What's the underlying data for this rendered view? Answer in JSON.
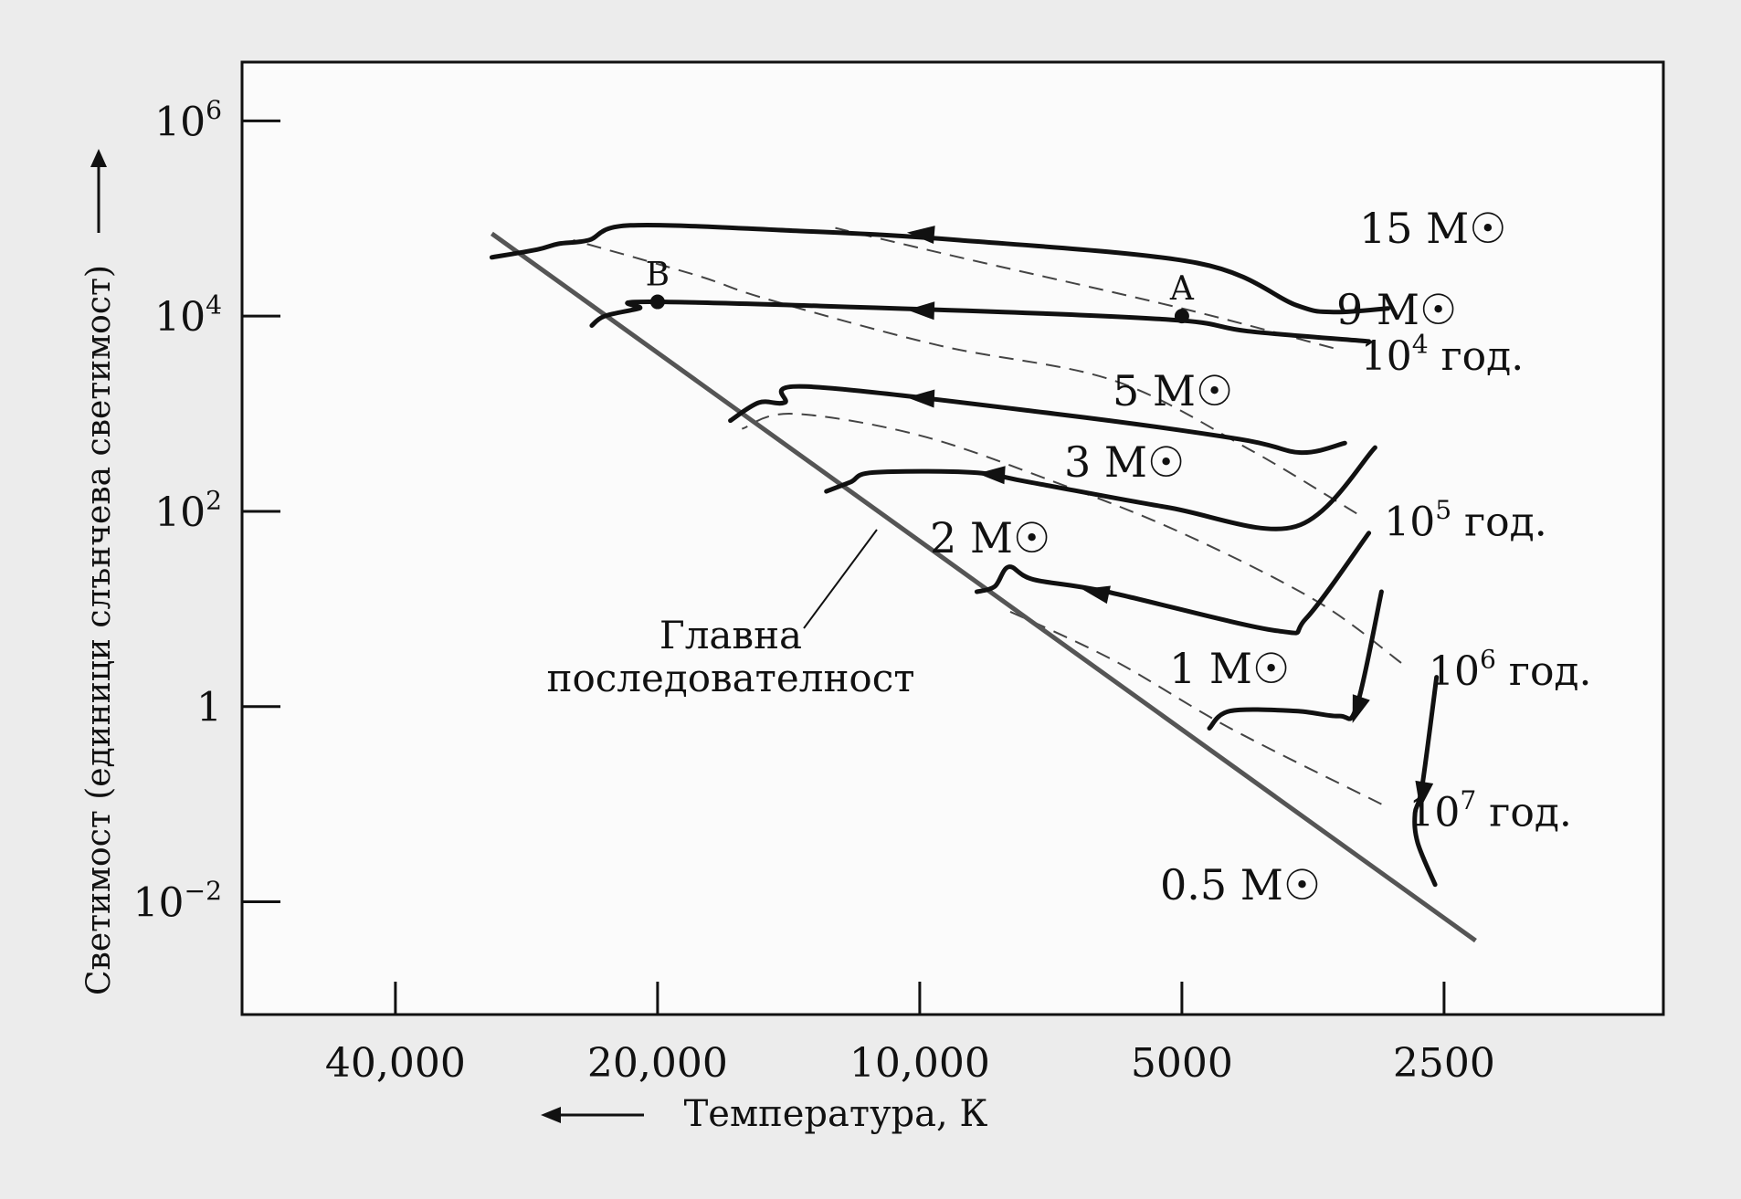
{
  "chart_data": {
    "type": "line",
    "xlabel": "Температура, К",
    "ylabel": "Светимост (единици слънчева светимост)",
    "x_scale": "log-reversed",
    "y_scale": "log",
    "xlim": [
      60000,
      1400
    ],
    "ylim": [
      0.0007,
      4000000
    ],
    "x_ticks": [
      {
        "value": 40000,
        "label": "40,000"
      },
      {
        "value": 20000,
        "label": "20,000"
      },
      {
        "value": 10000,
        "label": "10,000"
      },
      {
        "value": 5000,
        "label": "5000"
      },
      {
        "value": 2500,
        "label": "2500"
      }
    ],
    "y_ticks": [
      {
        "value": 1000000,
        "base": "10",
        "exp": "6"
      },
      {
        "value": 10000,
        "base": "10",
        "exp": "4"
      },
      {
        "value": 100,
        "base": "10",
        "exp": "2"
      },
      {
        "value": 1,
        "base": "1",
        "exp": ""
      },
      {
        "value": 0.01,
        "base": "10",
        "exp": "−2"
      }
    ],
    "main_sequence": {
      "label_line1": "Главна",
      "label_line2": "последователност",
      "points": [
        [
          31000,
          70000
        ],
        [
          2300,
          0.004
        ]
      ]
    },
    "series": [
      {
        "name": "15",
        "label_unit": "M☉",
        "points": [
          [
            2900,
            12000
          ],
          [
            3350,
            11000
          ],
          [
            3700,
            13000
          ],
          [
            4800,
            35000
          ],
          [
            9000,
            60000
          ],
          [
            14000,
            75000
          ],
          [
            21500,
            85000
          ],
          [
            24000,
            60000
          ],
          [
            26000,
            55000
          ],
          [
            27500,
            48000
          ],
          [
            31000,
            40000
          ]
        ],
        "arrow_at": [
          10000,
          70000
        ]
      },
      {
        "name": "9",
        "label_unit": "M☉",
        "points": [
          [
            3050,
            5500
          ],
          [
            4200,
            7000
          ],
          [
            5000,
            9000
          ],
          [
            8000,
            11000
          ],
          [
            20000,
            14000
          ],
          [
            21000,
            12000
          ],
          [
            23000,
            10000
          ],
          [
            23800,
            8000
          ]
        ],
        "arrow_at": [
          10000,
          11500
        ]
      },
      {
        "name": "5",
        "label_unit": "M☉",
        "points": [
          [
            3250,
            500
          ],
          [
            3650,
            400
          ],
          [
            4300,
            550
          ],
          [
            7000,
            1000
          ],
          [
            13500,
            1900
          ],
          [
            14300,
            1300
          ],
          [
            15300,
            1300
          ],
          [
            16500,
            850
          ]
        ],
        "arrow_at": [
          10000,
          1450
        ]
      },
      {
        "name": "3",
        "label_unit": "M☉",
        "points": [
          [
            3000,
            450
          ],
          [
            3700,
            70
          ],
          [
            5200,
            110
          ],
          [
            7500,
            200
          ],
          [
            8700,
            250
          ],
          [
            11300,
            250
          ],
          [
            12000,
            200
          ],
          [
            12800,
            160
          ]
        ],
        "arrow_at": [
          8300,
          240
        ]
      },
      {
        "name": "2",
        "label_unit": "M☉",
        "points": [
          [
            3050,
            60
          ],
          [
            3600,
            8
          ],
          [
            3900,
            6
          ],
          [
            6100,
            15
          ],
          [
            7400,
            20
          ],
          [
            7900,
            27
          ],
          [
            8200,
            17
          ],
          [
            8600,
            15
          ]
        ],
        "arrow_at": [
          6300,
          15
        ]
      },
      {
        "name": "1",
        "label_unit": "M☉",
        "points": [
          [
            2950,
            15
          ],
          [
            3150,
            1.0
          ],
          [
            3300,
            0.8
          ],
          [
            3700,
            0.9
          ],
          [
            4400,
            0.9
          ],
          [
            4650,
            0.6
          ]
        ],
        "arrow_at": [
          3150,
          0.9
        ]
      },
      {
        "name": "0.5",
        "label_unit": "M☉",
        "points": [
          [
            2550,
            2.0
          ],
          [
            2650,
            0.15
          ],
          [
            2700,
            0.08
          ],
          [
            2680,
            0.04
          ],
          [
            2560,
            0.015
          ]
        ],
        "arrow_at": [
          2650,
          0.12
        ]
      }
    ],
    "points": [
      {
        "label": "A",
        "x": 5000,
        "y": 10000
      },
      {
        "label": "B",
        "x": 20000,
        "y": 14000
      }
    ],
    "isochrones": [
      {
        "base": "10",
        "exp": "4",
        "unit": "год.",
        "points": [
          [
            3350,
            4700
          ],
          [
            5000,
            12000
          ],
          [
            9000,
            40000
          ],
          [
            12500,
            80000
          ]
        ]
      },
      {
        "base": "10",
        "exp": "5",
        "unit": "год.",
        "points": [
          [
            3150,
            95
          ],
          [
            4200,
            440
          ],
          [
            6000,
            2200
          ],
          [
            9500,
            5000
          ],
          [
            15000,
            15000
          ],
          [
            18000,
            26000
          ],
          [
            25000,
            60000
          ]
        ]
      },
      {
        "base": "10",
        "exp": "6",
        "unit": "год.",
        "points": [
          [
            2800,
            2.8
          ],
          [
            3500,
            12
          ],
          [
            5000,
            60
          ],
          [
            7000,
            200
          ],
          [
            10000,
            600
          ],
          [
            14000,
            1000
          ],
          [
            16000,
            700
          ]
        ]
      },
      {
        "base": "10",
        "exp": "7",
        "unit": "год.",
        "points": [
          [
            2950,
            0.1
          ],
          [
            4400,
            0.6
          ],
          [
            6000,
            3
          ],
          [
            8000,
            10
          ]
        ]
      }
    ],
    "grid": false
  }
}
